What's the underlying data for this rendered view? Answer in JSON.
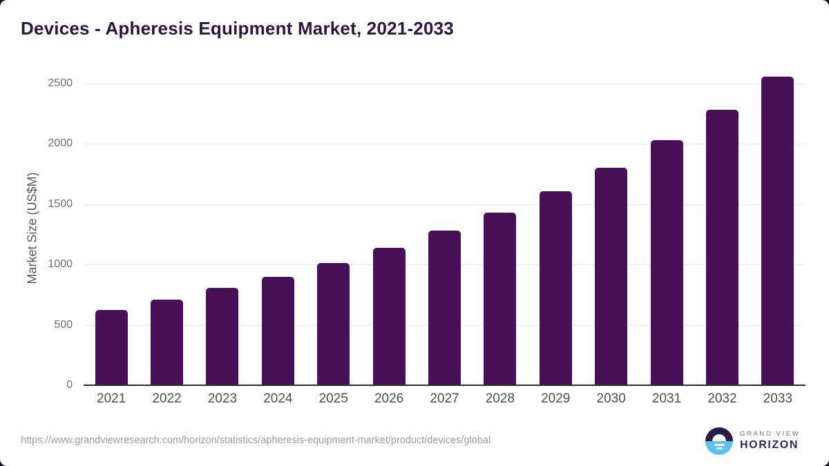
{
  "header": {
    "title": "Devices - Apheresis Equipment Market, 2021-2033"
  },
  "chart_data": {
    "type": "bar",
    "title": "Devices - Apheresis Equipment Market, 2021-2033",
    "categories": [
      "2021",
      "2022",
      "2023",
      "2024",
      "2025",
      "2026",
      "2027",
      "2028",
      "2029",
      "2030",
      "2031",
      "2032",
      "2033"
    ],
    "values": [
      625,
      710,
      805,
      900,
      1010,
      1140,
      1280,
      1430,
      1610,
      1805,
      2030,
      2280,
      2555
    ],
    "xlabel": "",
    "ylabel": "Market Size (US$M)",
    "ylim": [
      0,
      2500
    ],
    "ytick_step": 500,
    "yticks": [
      0,
      500,
      1000,
      1500,
      2000,
      2500
    ],
    "grid": true,
    "legend": false,
    "bar_color": "#471059"
  },
  "footer": {
    "source_url": "https://www.grandviewresearch.com/horizon/statistics/apheresis-equipment-market/product/devices/global",
    "brand": {
      "line1": "GRAND VIEW",
      "line2": "HORIZON"
    }
  },
  "colors": {
    "bar": "#471059",
    "title_text": "#2f1240",
    "gridline": "#e9e9e9",
    "axis_line": "#2b2b2b",
    "x_tick_text": "#4d4d4f",
    "y_tick_text": "#6d6e71",
    "url_text": "#9d9d9d",
    "logo_top": "#2b1b45",
    "logo_bottom": "#5ac2ef",
    "logo_brand_text": "#3b2353"
  }
}
